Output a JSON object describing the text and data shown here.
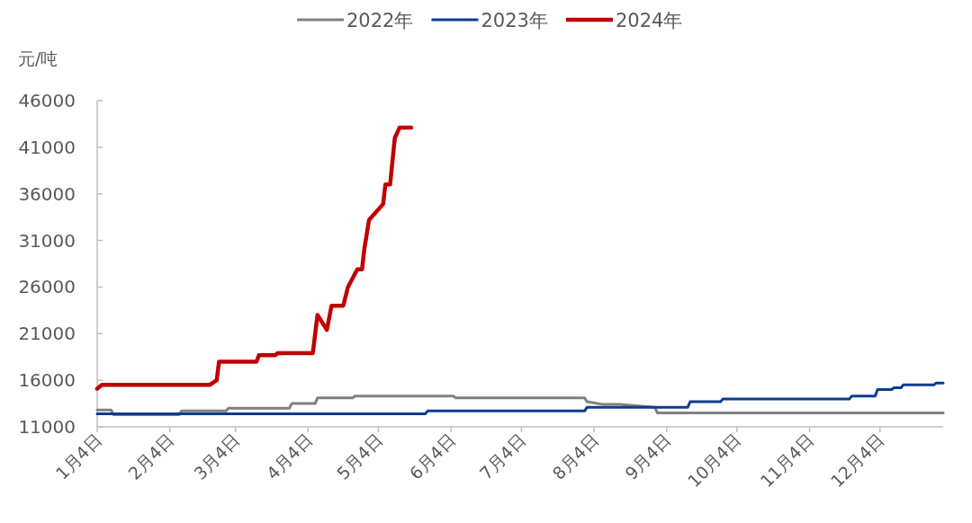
{
  "chart_data": {
    "type": "line",
    "ylabel": "元/吨",
    "legend": "top",
    "marker": "none",
    "line_style": "solid",
    "grid": false,
    "xlim": [
      "--01-04",
      "--12-31"
    ],
    "xticks": [
      {
        "value": "--01-04",
        "label": "1月4日"
      },
      {
        "value": "--02-04",
        "label": "2月4日"
      },
      {
        "value": "--03-04",
        "label": "3月4日"
      },
      {
        "value": "--04-04",
        "label": "4月4日"
      },
      {
        "value": "--05-04",
        "label": "5月4日"
      },
      {
        "value": "--06-04",
        "label": "6月4日"
      },
      {
        "value": "--07-04",
        "label": "7月4日"
      },
      {
        "value": "--08-04",
        "label": "8月4日"
      },
      {
        "value": "--09-04",
        "label": "9月4日"
      },
      {
        "value": "--10-04",
        "label": "10月4日"
      },
      {
        "value": "--11-04",
        "label": "11月4日"
      },
      {
        "value": "--12-04",
        "label": "12月4日"
      }
    ],
    "ylim": [
      11000,
      46000
    ],
    "yticks": [
      11000,
      16000,
      21000,
      26000,
      31000,
      36000,
      41000,
      46000
    ],
    "series": [
      {
        "name": "2022年",
        "color": "#808080",
        "x": [
          "--01-04",
          "--01-10",
          "--01-11",
          "--02-08",
          "--02-09",
          "--02-28",
          "--03-01",
          "--03-27",
          "--03-28",
          "--04-07",
          "--04-08",
          "--04-23",
          "--04-24",
          "--06-05",
          "--06-06",
          "--07-31",
          "--08-01",
          "--08-08",
          "--08-15",
          "--08-30",
          "--08-31",
          "--12-31"
        ],
        "values": [
          12800,
          12800,
          12300,
          12300,
          12700,
          12700,
          13000,
          13000,
          13500,
          13500,
          14100,
          14100,
          14300,
          14300,
          14100,
          14100,
          13700,
          13400,
          13400,
          13100,
          12500,
          12500
        ]
      },
      {
        "name": "2023年",
        "color": "#0a3d91",
        "x": [
          "--01-04",
          "--05-24",
          "--05-25",
          "--07-31",
          "--08-01",
          "--09-13",
          "--09-14",
          "--09-27",
          "--09-28",
          "--11-21",
          "--11-22",
          "--12-02",
          "--12-03",
          "--12-09",
          "--12-10",
          "--12-13",
          "--12-14",
          "--12-27",
          "--12-28",
          "--12-31"
        ],
        "values": [
          12400,
          12400,
          12700,
          12700,
          13100,
          13100,
          13700,
          13700,
          14000,
          14000,
          14300,
          14300,
          15000,
          15000,
          15200,
          15200,
          15500,
          15500,
          15700,
          15700
        ]
      },
      {
        "name": "2024年",
        "color": "#c00000",
        "x": [
          "--01-04",
          "--01-06",
          "--02-21",
          "--02-24",
          "--02-25",
          "--03-13",
          "--03-14",
          "--03-21",
          "--03-22",
          "--04-06",
          "--04-08",
          "--04-12",
          "--04-14",
          "--04-19",
          "--04-21",
          "--04-25",
          "--04-27",
          "--04-28",
          "--04-30",
          "--05-06",
          "--05-07",
          "--05-09",
          "--05-11",
          "--05-13",
          "--05-18"
        ],
        "values": [
          15100,
          15500,
          15500,
          16000,
          18000,
          18000,
          18700,
          18700,
          18900,
          18900,
          23000,
          21400,
          24000,
          24000,
          26000,
          27900,
          27900,
          30100,
          33200,
          34900,
          37000,
          37000,
          42000,
          43100,
          43100
        ]
      }
    ]
  }
}
